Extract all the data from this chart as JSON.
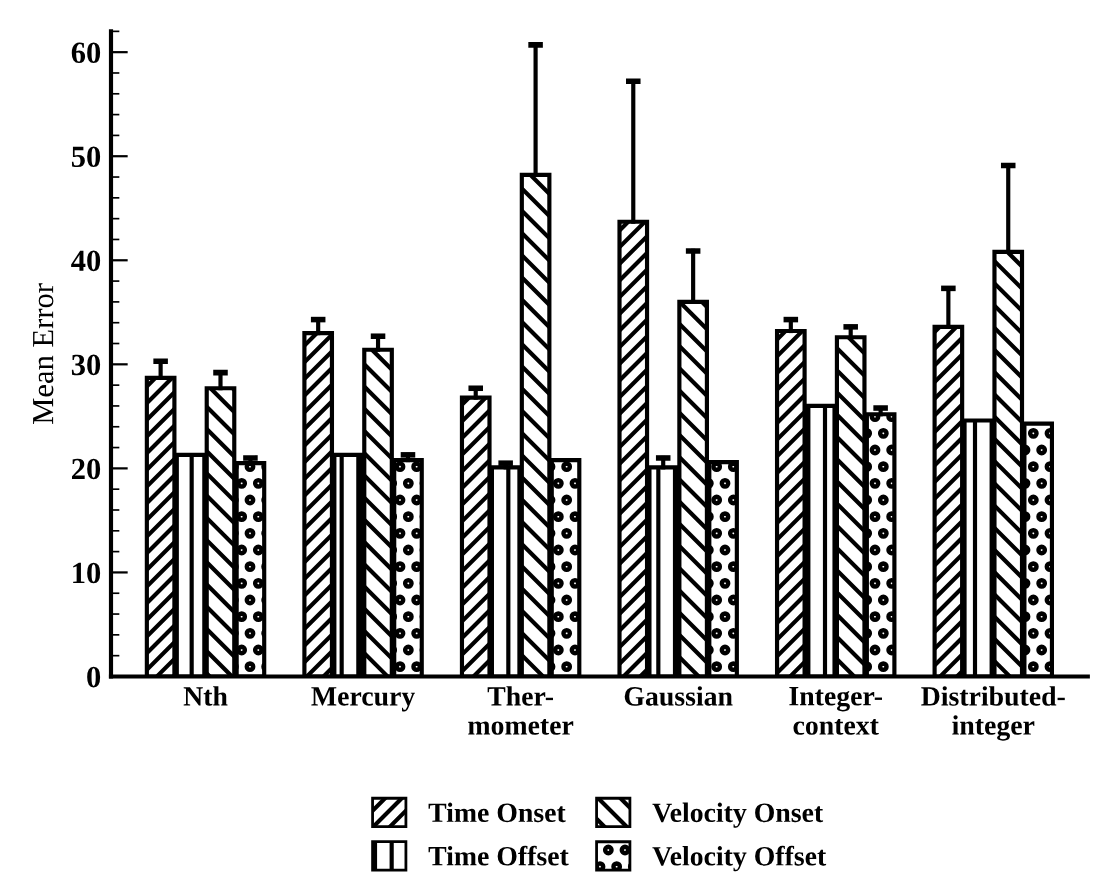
{
  "chart_data": {
    "type": "bar",
    "ylabel": "Mean Error",
    "categories": [
      "Nth",
      "Mercury",
      "Ther-\nmometer",
      "Gaussian",
      "Integer-\ncontext",
      "Distributed-\ninteger"
    ],
    "series": [
      {
        "name": "Time Onset",
        "color": "#000000",
        "values": [
          28.7,
          33.0,
          26.8,
          43.7,
          33.2,
          33.6
        ],
        "errors": [
          [
            28.7,
            30.3
          ],
          [
            33.0,
            34.3
          ],
          [
            26.8,
            27.7
          ],
          [
            43.7,
            57.2
          ],
          [
            33.2,
            34.3
          ],
          [
            33.6,
            37.3
          ]
        ]
      },
      {
        "name": "Time Offset",
        "color": "#000000",
        "values": [
          21.3,
          21.3,
          20.1,
          20.1,
          26.0,
          24.6
        ],
        "errors": [
          null,
          null,
          [
            20.1,
            20.5
          ],
          [
            20.1,
            21.0
          ],
          null,
          null
        ]
      },
      {
        "name": "Velocity Onset",
        "color": "#000000",
        "values": [
          27.7,
          31.4,
          48.2,
          36.0,
          32.6,
          40.8
        ],
        "errors": [
          [
            27.7,
            29.2
          ],
          [
            31.4,
            32.7
          ],
          [
            48.2,
            60.7
          ],
          [
            36.0,
            40.9
          ],
          [
            32.6,
            33.6
          ],
          [
            40.8,
            49.1
          ]
        ]
      },
      {
        "name": "Velocity Offset",
        "color": "#000000",
        "values": [
          20.5,
          20.8,
          20.8,
          20.6,
          25.2,
          24.3
        ],
        "errors": [
          [
            20.5,
            21.0
          ],
          [
            20.8,
            21.3
          ],
          null,
          null,
          [
            25.2,
            25.8
          ],
          null
        ]
      }
    ],
    "ylim": [
      0,
      62
    ],
    "yticks": [
      0,
      10,
      20,
      30,
      40,
      50,
      60
    ],
    "grid": false,
    "legend": "bottom"
  }
}
